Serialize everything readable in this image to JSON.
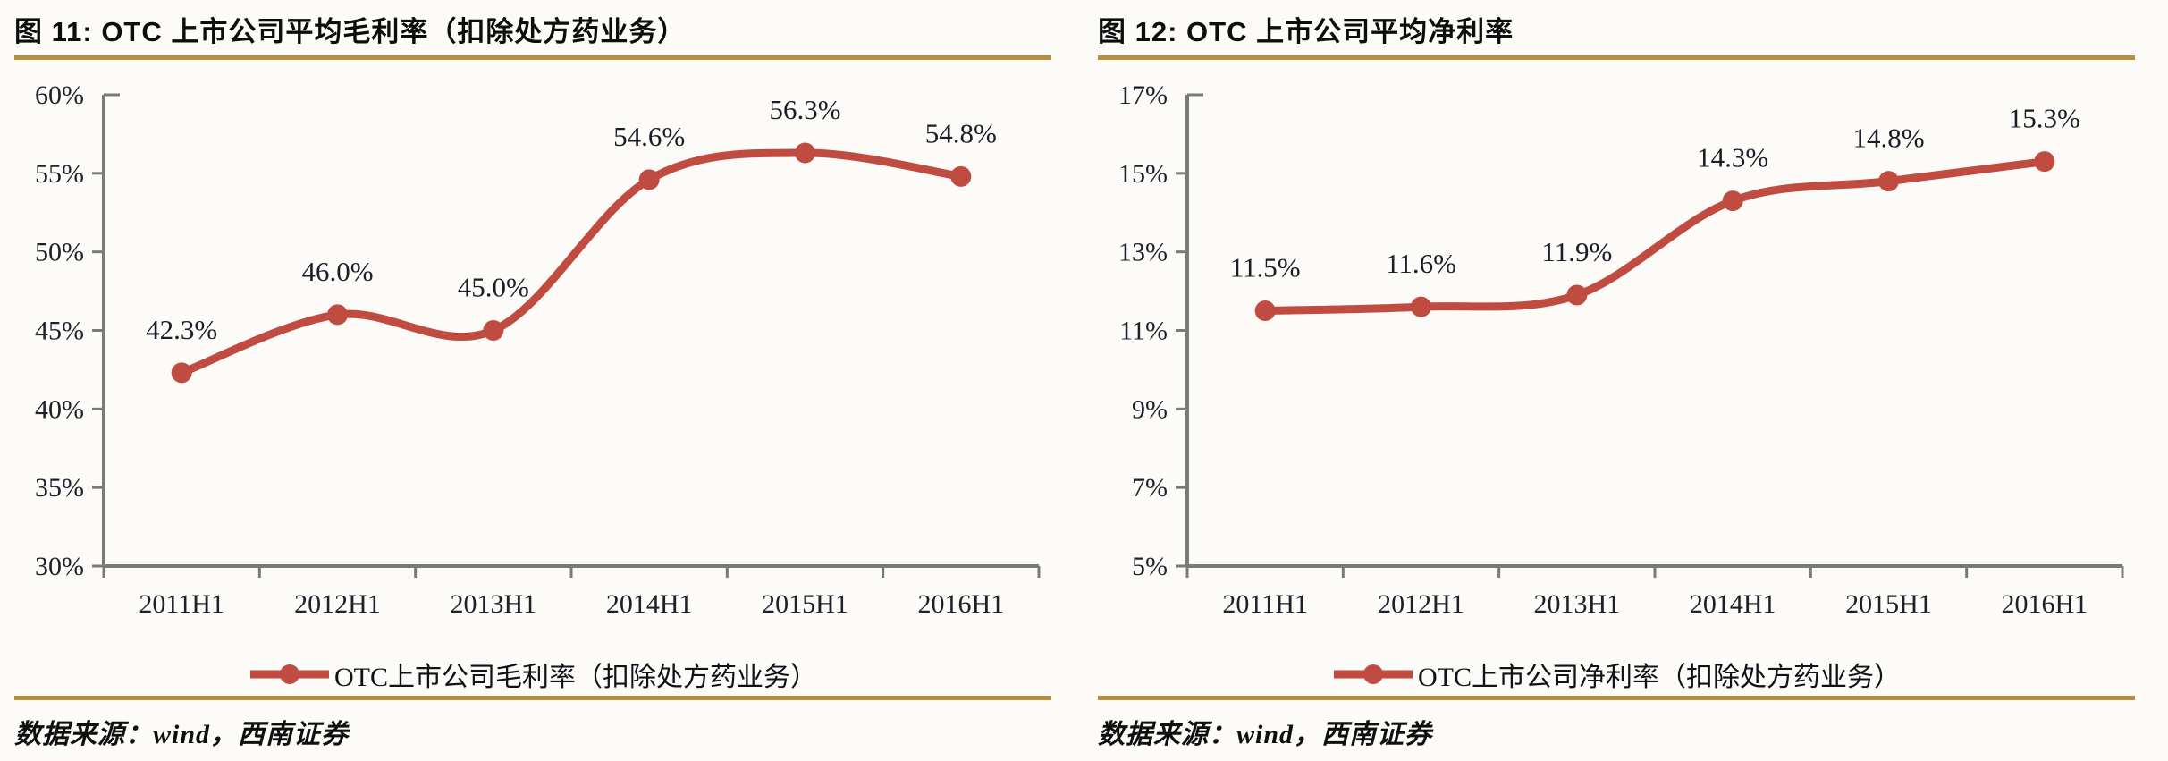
{
  "colors": {
    "series_red": "#C04B41",
    "rule_gold": "#B5913E",
    "axis_gray": "#7a7a7a",
    "background": "#FCFBF7"
  },
  "panels": [
    {
      "title": "图 11:  OTC 上市公司平均毛利率（扣除处方药业务）",
      "legend": "OTC上市公司毛利率（扣除处方药业务）",
      "source": "数据来源：wind，西南证券"
    },
    {
      "title": "图 12:  OTC 上市公司平均净利率",
      "legend": "OTC上市公司净利率（扣除处方药业务）",
      "source": "数据来源：wind，西南证券"
    }
  ],
  "chart_data": [
    {
      "type": "line",
      "title": "图 11: OTC 上市公司平均毛利率（扣除处方药业务）",
      "categories": [
        "2011H1",
        "2012H1",
        "2013H1",
        "2014H1",
        "2015H1",
        "2016H1"
      ],
      "values": [
        42.3,
        46.0,
        45.0,
        54.6,
        56.3,
        54.8
      ],
      "point_labels": [
        "42.3%",
        "46.0%",
        "45.0%",
        "54.6%",
        "56.3%",
        "54.8%"
      ],
      "ylim": [
        30,
        60
      ],
      "ytick_step": 5,
      "ytick_labels": [
        "30%",
        "35%",
        "40%",
        "45%",
        "50%",
        "55%",
        "60%"
      ],
      "legend": "OTC上市公司毛利率（扣除处方药业务）",
      "legend_position": "bottom",
      "line_color": "#C04B41",
      "smooth": true,
      "grid": false
    },
    {
      "type": "line",
      "title": "图 12: OTC 上市公司平均净利率",
      "categories": [
        "2011H1",
        "2012H1",
        "2013H1",
        "2014H1",
        "2015H1",
        "2016H1"
      ],
      "values": [
        11.5,
        11.6,
        11.9,
        14.3,
        14.8,
        15.3
      ],
      "point_labels": [
        "11.5%",
        "11.6%",
        "11.9%",
        "14.3%",
        "14.8%",
        "15.3%"
      ],
      "ylim": [
        5,
        17
      ],
      "ytick_step": 2,
      "ytick_labels": [
        "5%",
        "7%",
        "9%",
        "11%",
        "13%",
        "15%",
        "17%"
      ],
      "legend": "OTC上市公司净利率（扣除处方药业务）",
      "legend_position": "bottom",
      "line_color": "#C04B41",
      "smooth": true,
      "grid": false
    }
  ]
}
